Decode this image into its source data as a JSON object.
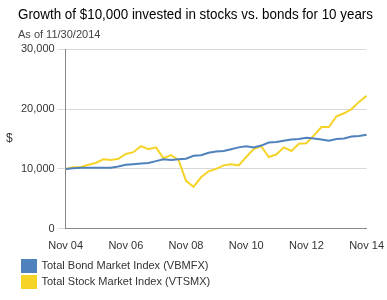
{
  "chart_data": {
    "type": "line",
    "title": "Growth of $10,000 invested in stocks vs. bonds for 10 years",
    "subtitle": "As of 11/30/2014",
    "y_label": "$",
    "categories": [
      "Nov 04",
      null,
      null,
      null,
      null,
      null,
      null,
      null,
      "Nov 06",
      null,
      null,
      null,
      null,
      null,
      null,
      null,
      "Nov 08",
      null,
      null,
      null,
      null,
      null,
      null,
      null,
      "Nov 10",
      null,
      null,
      null,
      null,
      null,
      null,
      null,
      "Nov 12",
      null,
      null,
      null,
      null,
      null,
      null,
      null,
      "Nov 14"
    ],
    "series": [
      {
        "name": "Total Bond Market Index (VBMFX)",
        "color": "#4f81bd",
        "values": [
          10000,
          10100,
          10200,
          10200,
          10200,
          10200,
          10200,
          10400,
          10700,
          10800,
          10900,
          11000,
          11300,
          11600,
          11500,
          11600,
          11700,
          12200,
          12300,
          12700,
          12900,
          13000,
          13300,
          13600,
          13800,
          13600,
          13900,
          14400,
          14500,
          14700,
          14900,
          15000,
          15200,
          15100,
          14900,
          14700,
          15000,
          15100,
          15400,
          15500,
          15700
        ]
      },
      {
        "name": "Total Stock Market Index (VTSMX)",
        "color": "#f5d327",
        "values": [
          10000,
          10300,
          10300,
          10700,
          11000,
          11600,
          11500,
          11700,
          12500,
          12800,
          13800,
          13300,
          13600,
          11800,
          12300,
          11500,
          8000,
          7000,
          8600,
          9600,
          10000,
          10600,
          10800,
          10600,
          12000,
          13300,
          13800,
          12000,
          12400,
          13600,
          13000,
          14200,
          14300,
          15600,
          17000,
          17000,
          18800,
          19300,
          20000,
          21200,
          22200
        ]
      }
    ],
    "ylim": [
      0,
      30000
    ],
    "yticks": [
      0,
      {
        "value": 10000,
        "label": "10,000"
      },
      {
        "value": 20000,
        "label": "20,000"
      },
      {
        "value": 30000,
        "label": "30,000"
      }
    ],
    "grid": true,
    "legend": "bottom left"
  }
}
